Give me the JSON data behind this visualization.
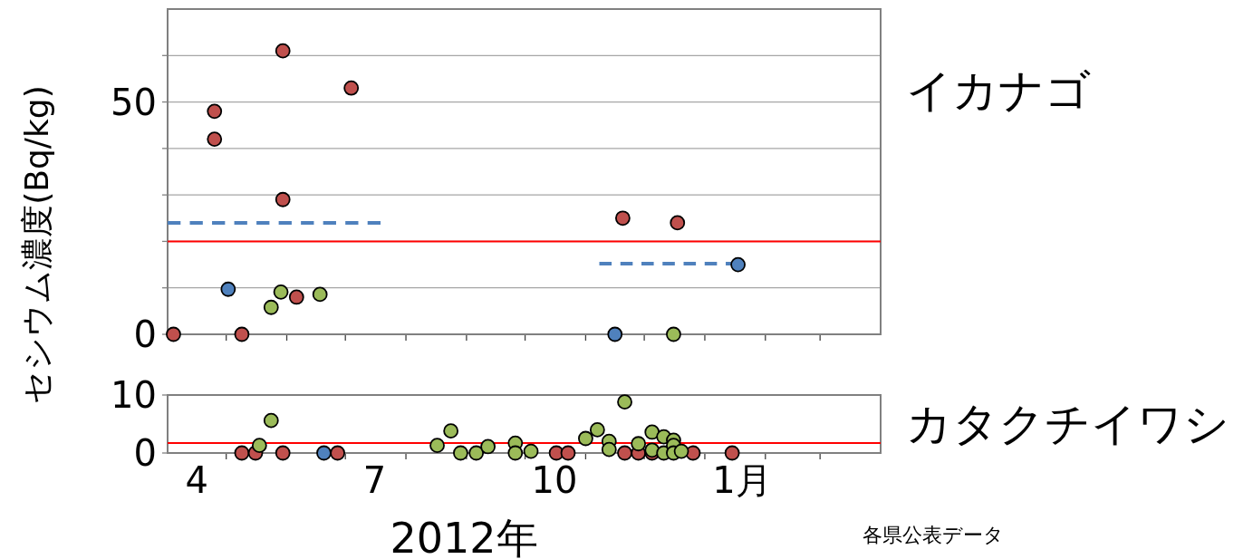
{
  "chart_data": [
    {
      "type": "scatter",
      "annotations": [
        "イカナゴ"
      ],
      "ylabel": "セシウム濃度(Bq/kg)",
      "xlim": [
        "2012-04-01",
        "2013-04-01"
      ],
      "ylim": [
        0,
        70
      ],
      "xticks": [
        {
          "value": "2012-05-01",
          "label": null
        },
        {
          "value": "2012-06-01",
          "label": null
        },
        {
          "value": "2012-07-01",
          "label": null
        },
        {
          "value": "2012-08-01",
          "label": null
        },
        {
          "value": "2012-09-01",
          "label": null
        },
        {
          "value": "2012-10-01",
          "label": null
        },
        {
          "value": "2012-11-01",
          "label": null
        },
        {
          "value": "2012-12-01",
          "label": null
        },
        {
          "value": "2013-01-01",
          "label": null
        },
        {
          "value": "2013-02-01",
          "label": null
        },
        {
          "value": "2013-03-01",
          "label": null
        }
      ],
      "yticks": [
        0,
        {
          "value": 10,
          "label": null
        },
        {
          "value": 20,
          "label": null
        },
        {
          "value": 30,
          "label": null
        },
        {
          "value": 40,
          "label": null
        },
        50,
        {
          "value": 60,
          "label": null
        }
      ],
      "tick_labels": "y",
      "grid": "y",
      "marker": "circle",
      "ref_lines": [
        {
          "axis": "y",
          "value": 20,
          "label": null,
          "color": "#ff0000"
        }
      ],
      "series": [
        {
          "color": "#c0504d",
          "x": [
            "2012-04-04",
            "2012-04-25",
            "2012-04-25",
            "2012-05-09",
            "2012-05-30",
            "2012-05-30",
            "2012-06-06",
            "2012-07-04",
            "2012-11-20",
            "2012-12-18"
          ],
          "values": [
            0,
            48,
            42,
            0,
            61,
            29,
            8,
            53,
            25,
            24
          ]
        },
        {
          "color": "#4f81bd",
          "x": [
            "2012-05-02",
            "2012-11-16",
            "2013-01-18"
          ],
          "values": [
            9.7,
            0,
            15
          ]
        },
        {
          "color": "#9bbb59",
          "x": [
            "2012-05-24",
            "2012-05-29",
            "2012-06-18",
            "2012-12-16"
          ],
          "values": [
            5.8,
            9.1,
            8.6,
            0
          ]
        },
        {
          "type": "line",
          "color": "#4f81bd",
          "line_style": "dashed",
          "marker": "none",
          "x": [
            "2012-04-01",
            "2012-07-19"
          ],
          "values": [
            24,
            24
          ]
        },
        {
          "type": "line",
          "color": "#4f81bd",
          "line_style": "dashed",
          "marker": "none",
          "x": [
            "2012-11-08",
            "2013-01-18"
          ],
          "values": [
            15.2,
            15.2
          ]
        }
      ]
    },
    {
      "type": "scatter",
      "xlabel": "2012年",
      "annotations": [
        "カタクチイワシ",
        "各県公表データ"
      ],
      "xlim": [
        "2012-04-01",
        "2013-04-01"
      ],
      "ylim": [
        0,
        10
      ],
      "xticks": [
        {
          "value": "2012-04-16",
          "label": "4"
        },
        {
          "value": "2012-05-01",
          "label": null
        },
        {
          "value": "2012-06-01",
          "label": null
        },
        {
          "value": "2012-07-01",
          "label": null
        },
        {
          "value": "2012-07-16",
          "label": "7"
        },
        {
          "value": "2012-08-01",
          "label": null
        },
        {
          "value": "2012-09-01",
          "label": null
        },
        {
          "value": "2012-10-01",
          "label": null
        },
        {
          "value": "2012-10-16",
          "label": "10"
        },
        {
          "value": "2012-11-01",
          "label": null
        },
        {
          "value": "2012-12-01",
          "label": null
        },
        {
          "value": "2013-01-01",
          "label": null
        },
        {
          "value": "2013-01-20",
          "label": "1月"
        },
        {
          "value": "2013-02-01",
          "label": null
        },
        {
          "value": "2013-03-01",
          "label": null
        }
      ],
      "yticks": [
        0,
        10
      ],
      "grid": false,
      "marker": "circle",
      "ref_lines": [
        {
          "axis": "y",
          "value": 1.7,
          "label": null,
          "color": "#ff0000"
        }
      ],
      "series": [
        {
          "color": "#c0504d",
          "x": [
            "2012-05-09",
            "2012-05-16",
            "2012-05-30",
            "2012-06-27",
            "2012-10-17",
            "2012-10-23",
            "2012-11-21",
            "2012-11-28",
            "2012-12-05",
            "2012-12-26",
            "2013-01-15"
          ],
          "values": [
            0,
            0,
            0,
            0,
            0,
            0,
            0,
            0,
            0,
            0,
            0
          ]
        },
        {
          "color": "#4f81bd",
          "x": [
            "2012-06-20"
          ],
          "values": [
            0
          ]
        },
        {
          "color": "#9bbb59",
          "x": [
            "2012-05-18",
            "2012-05-24",
            "2012-08-17",
            "2012-08-24",
            "2012-08-29",
            "2012-09-06",
            "2012-09-12",
            "2012-09-26",
            "2012-09-26",
            "2012-10-04",
            "2012-11-01",
            "2012-11-07",
            "2012-11-13",
            "2012-11-13",
            "2012-11-21",
            "2012-11-28",
            "2012-12-05",
            "2012-12-05",
            "2012-12-11",
            "2012-12-11",
            "2012-12-16",
            "2012-12-16",
            "2012-12-16",
            "2012-12-20"
          ],
          "values": [
            1.3,
            5.6,
            1.3,
            3.8,
            0,
            0,
            1.1,
            1.7,
            0,
            0.3,
            2.5,
            4.0,
            2.0,
            0.6,
            8.8,
            1.6,
            3.6,
            0.5,
            2.8,
            0,
            2.2,
            1.3,
            0,
            0.3
          ]
        }
      ]
    }
  ]
}
